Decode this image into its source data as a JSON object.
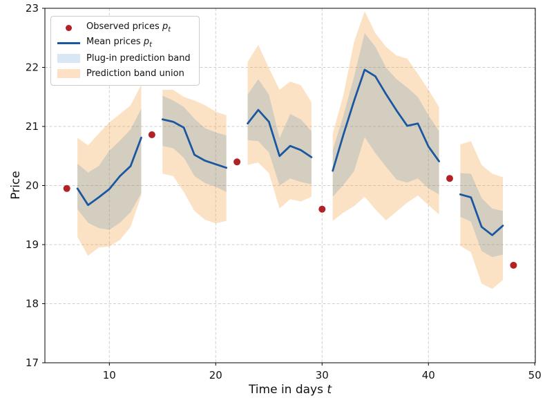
{
  "figure": {
    "xlabel_prefix": "Time in days ",
    "xlabel_var": "t",
    "ylabel": "Price"
  },
  "legend": {
    "items": [
      {
        "text": "Observed prices ",
        "math_var": "p",
        "math_sub": "t",
        "marker": "red-dot"
      },
      {
        "text": "Mean prices ",
        "math_var": "p",
        "math_sub": "t",
        "marker": "blue-line"
      },
      {
        "text": "Plug-in prediction band",
        "marker": "lightblue-patch"
      },
      {
        "text": "Prediction band union",
        "marker": "peach-patch"
      }
    ]
  },
  "colors": {
    "mean_line": "#1a57a0",
    "observed_dot": "#b22126",
    "plugin_band": "rgba(31,119,180,0.18)",
    "union_band": "rgba(246,158,60,0.30)",
    "legend_plugin_swatch": "#d8e7f3",
    "legend_union_swatch": "#fce1c5",
    "grid": "#cfcfcf"
  },
  "chart_data": {
    "type": "line",
    "title": "",
    "xlabel": "Time in days t",
    "ylabel": "Price",
    "xlim": [
      3.94,
      50.05
    ],
    "ylim": [
      17,
      23
    ],
    "xticks": [
      10,
      20,
      30,
      40,
      50
    ],
    "yticks": [
      17,
      18,
      19,
      20,
      21,
      22,
      23
    ],
    "grid": true,
    "legend_position": "upper left",
    "observed": {
      "x": [
        6,
        14,
        22,
        30,
        42,
        48
      ],
      "y": [
        19.95,
        20.86,
        20.4,
        19.6,
        20.12,
        18.65
      ]
    },
    "segments": [
      {
        "days": [
          7,
          8,
          9,
          10,
          11,
          12,
          13
        ],
        "mean": [
          19.95,
          19.67,
          19.8,
          19.94,
          20.16,
          20.33,
          20.81
        ],
        "plugin_hi": [
          20.37,
          20.22,
          20.33,
          20.59,
          20.76,
          20.95,
          21.3
        ],
        "plugin_lo": [
          19.6,
          19.37,
          19.28,
          19.25,
          19.37,
          19.55,
          19.87
        ],
        "union_hi": [
          20.81,
          20.68,
          20.88,
          21.07,
          21.21,
          21.36,
          21.71
        ],
        "union_lo": [
          19.13,
          18.81,
          18.95,
          18.97,
          19.08,
          19.3,
          19.83
        ]
      },
      {
        "days": [
          15,
          16,
          17,
          18,
          19,
          20,
          21
        ],
        "mean": [
          21.12,
          21.08,
          20.98,
          20.52,
          20.42,
          20.36,
          20.3
        ],
        "plugin_hi": [
          21.52,
          21.44,
          21.33,
          21.13,
          20.97,
          20.9,
          20.85
        ],
        "plugin_lo": [
          20.67,
          20.63,
          20.47,
          20.16,
          20.04,
          19.98,
          19.89
        ],
        "union_hi": [
          21.62,
          21.62,
          21.5,
          21.44,
          21.36,
          21.25,
          21.19
        ],
        "union_lo": [
          20.2,
          20.16,
          19.89,
          19.57,
          19.42,
          19.36,
          19.4
        ]
      },
      {
        "days": [
          23,
          24,
          25,
          26,
          27,
          28,
          29
        ],
        "mean": [
          21.05,
          21.28,
          21.08,
          20.5,
          20.67,
          20.6,
          20.48
        ],
        "plugin_hi": [
          21.54,
          21.8,
          21.54,
          20.8,
          21.21,
          21.12,
          20.92
        ],
        "plugin_lo": [
          20.77,
          20.75,
          20.56,
          20.0,
          20.12,
          20.06,
          20.02
        ],
        "union_hi": [
          22.09,
          22.38,
          21.99,
          21.62,
          21.76,
          21.7,
          21.41
        ],
        "union_lo": [
          20.35,
          20.39,
          20.21,
          19.61,
          19.77,
          19.73,
          19.81
        ]
      },
      {
        "days": [
          31,
          32,
          33,
          34,
          35,
          36,
          37,
          38,
          39,
          40,
          41
        ],
        "mean": [
          20.25,
          20.86,
          21.43,
          21.96,
          21.85,
          21.55,
          21.27,
          21.01,
          21.05,
          20.66,
          20.41
        ],
        "plugin_hi": [
          20.6,
          21.18,
          21.84,
          22.58,
          22.35,
          22.0,
          21.8,
          21.66,
          21.5,
          21.19,
          20.92
        ],
        "plugin_lo": [
          19.81,
          20.01,
          20.24,
          20.82,
          20.55,
          20.32,
          20.1,
          20.05,
          20.12,
          19.95,
          19.85
        ],
        "union_hi": [
          20.88,
          21.53,
          22.43,
          22.95,
          22.58,
          22.35,
          22.2,
          22.15,
          21.89,
          21.62,
          21.33
        ],
        "union_lo": [
          19.4,
          19.54,
          19.65,
          19.81,
          19.6,
          19.41,
          19.56,
          19.71,
          19.83,
          19.67,
          19.51
        ]
      },
      {
        "days": [
          43,
          44,
          45,
          46,
          47
        ],
        "mean": [
          19.85,
          19.8,
          19.3,
          19.16,
          19.32
        ],
        "plugin_hi": [
          20.21,
          20.2,
          19.79,
          19.61,
          19.57
        ],
        "plugin_lo": [
          19.47,
          19.39,
          18.89,
          18.79,
          18.83
        ],
        "union_hi": [
          20.7,
          20.75,
          20.35,
          20.2,
          20.14
        ],
        "union_lo": [
          18.98,
          18.87,
          18.34,
          18.25,
          18.4
        ]
      }
    ]
  }
}
